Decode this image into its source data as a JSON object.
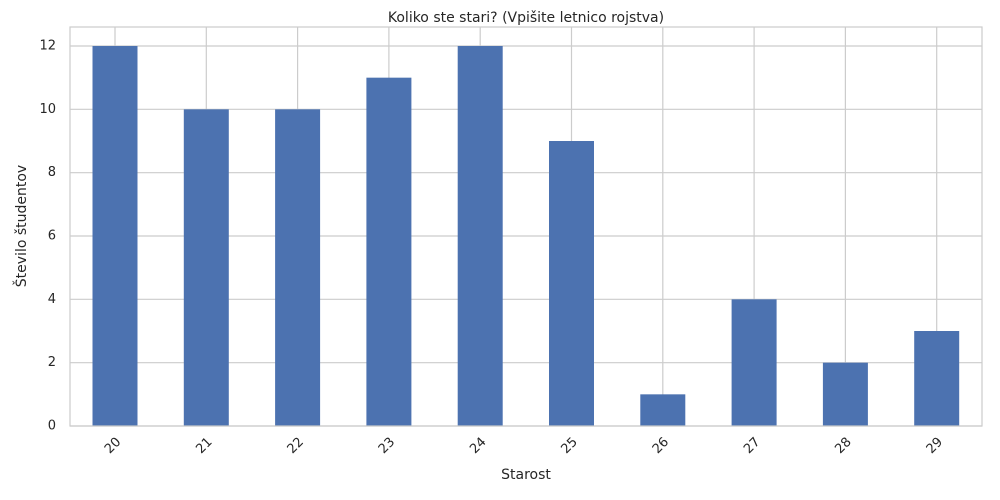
{
  "chart_data": {
    "type": "bar",
    "title": "Koliko ste stari? (Vpišite letnico rojstva)",
    "xlabel": "Starost",
    "ylabel": "Število študentov",
    "categories": [
      "20",
      "21",
      "22",
      "23",
      "24",
      "25",
      "26",
      "27",
      "28",
      "29"
    ],
    "values": [
      12,
      10,
      10,
      11,
      12,
      9,
      1,
      4,
      2,
      3
    ],
    "ylim": [
      0,
      12.6
    ],
    "yticks": [
      0,
      2,
      4,
      6,
      8,
      10,
      12
    ],
    "grid": true,
    "bar_color": "#4c72b0",
    "grid_color": "#cccccc",
    "axes_edge_color": "#cccccc",
    "text_color": "#262626"
  }
}
